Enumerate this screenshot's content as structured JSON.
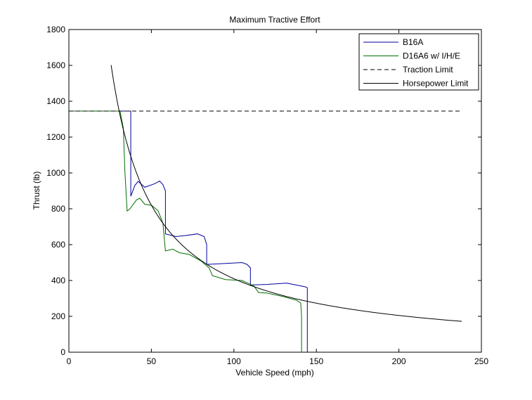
{
  "chart_data": {
    "type": "line",
    "title": "Maximum Tractive Effort",
    "xlabel": "Vehicle Speed (mph)",
    "ylabel": "Thrust (lb)",
    "xlim": [
      0,
      250
    ],
    "ylim": [
      0,
      1800
    ],
    "xticks": [
      0,
      50,
      100,
      150,
      200,
      250
    ],
    "yticks": [
      0,
      200,
      400,
      600,
      800,
      1000,
      1200,
      1400,
      1600,
      1800
    ],
    "grid": false,
    "legend_position": "top-right",
    "series": [
      {
        "name": "B16A",
        "color": "#0000a0",
        "dash": "solid",
        "x": [
          0,
          37.5,
          37.5,
          40,
          42,
          46,
          52,
          55,
          57,
          58.5,
          58.5,
          65,
          70,
          78,
          82,
          83.5,
          83.5,
          95,
          105,
          108,
          110,
          110,
          120,
          132,
          143,
          144.5,
          144.5
        ],
        "y": [
          1345,
          1345,
          870,
          930,
          953,
          920,
          940,
          955,
          935,
          900,
          660,
          645,
          650,
          660,
          645,
          600,
          490,
          495,
          500,
          490,
          470,
          375,
          378,
          385,
          365,
          360,
          0
        ]
      },
      {
        "name": "D16A6 w/ I/H/E",
        "color": "#007000",
        "dash": "solid",
        "x": [
          0,
          31,
          33,
          34,
          35.3,
          37,
          41,
          43,
          46,
          50,
          54,
          57,
          58.5,
          63,
          67,
          73,
          80,
          85,
          87,
          95,
          105,
          112,
          115,
          120,
          130,
          138,
          140.5,
          141,
          141
        ],
        "y": [
          1345,
          1345,
          1250,
          1000,
          788,
          800,
          850,
          859,
          825,
          820,
          790,
          720,
          565,
          575,
          555,
          545,
          510,
          470,
          427,
          405,
          400,
          370,
          333,
          330,
          310,
          290,
          274,
          200,
          0
        ]
      },
      {
        "name": "Traction Limit",
        "color": "#000000",
        "dash": "dashed",
        "x": [
          0,
          238.5
        ],
        "y": [
          1345,
          1345
        ]
      },
      {
        "name": "Horsepower Limit",
        "color": "#000000",
        "dash": "solid",
        "hp_constant": 41000,
        "x_range": [
          25.6,
          238.5
        ]
      }
    ]
  }
}
